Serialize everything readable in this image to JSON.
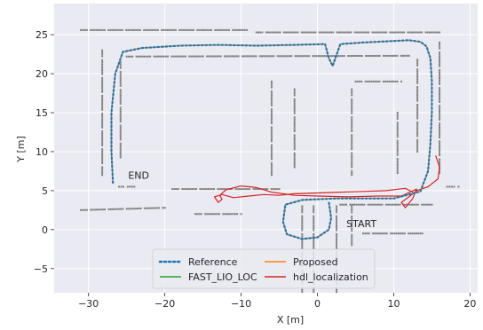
{
  "chart_data": {
    "type": "line",
    "title": "",
    "xlabel": "X [m]",
    "ylabel": "Y [m]",
    "xlim": [
      -34.5,
      21
    ],
    "ylim": [
      -8.1,
      29
    ],
    "xticks": [
      -30,
      -20,
      -10,
      0,
      10,
      20
    ],
    "yticks": [
      -5,
      0,
      5,
      10,
      15,
      20,
      25
    ],
    "grid": true,
    "background": "#eaeaf2",
    "legend_position": "bottom-center",
    "annotations": [
      {
        "text": "END",
        "x": -24.8,
        "y": 6.5
      },
      {
        "text": "START",
        "x": 3.8,
        "y": 0.3
      }
    ],
    "series": [
      {
        "name": "Reference",
        "style": "dotted",
        "color": "#1f77b4",
        "x": [
          -26.8,
          -27,
          -27,
          -26.5,
          -25.5,
          -23,
          -18,
          -13,
          -8,
          -3,
          1,
          1.5,
          2,
          3,
          6,
          10,
          12,
          13.5,
          14.3,
          14.8,
          15,
          15,
          14.8,
          14.5,
          13.5,
          10,
          6,
          2.5,
          -2,
          -4.2,
          -4.5,
          -4,
          -2,
          0,
          1.5,
          1.8,
          1.5
        ],
        "y": [
          6.0,
          10,
          15,
          20,
          22.8,
          23.3,
          23.6,
          23.7,
          23.6,
          23.7,
          23.8,
          22,
          21,
          23.8,
          24,
          24.2,
          24.3,
          24.1,
          23.5,
          22,
          19,
          15,
          11,
          7.5,
          4.9,
          4.0,
          4.0,
          4.0,
          3.8,
          3.2,
          1,
          -0.6,
          -1.2,
          -1.0,
          0,
          1.5,
          3.5
        ]
      },
      {
        "name": "Proposed",
        "style": "solid",
        "color": "#ff7f0e",
        "x": [
          -26.8,
          -27,
          -27,
          -26.5,
          -25.5,
          -23,
          -18,
          -13,
          -8,
          -3,
          1,
          1.5,
          2,
          3,
          6,
          10,
          12,
          13.5,
          14.3,
          14.8,
          15,
          15,
          14.8,
          14.5,
          13.5,
          10,
          6,
          2.5,
          -2,
          -4.2,
          -4.5,
          -4,
          -2,
          0,
          1.5,
          1.8,
          1.5
        ],
        "y": [
          6.0,
          10,
          15,
          20,
          22.8,
          23.3,
          23.6,
          23.7,
          23.6,
          23.7,
          23.8,
          22,
          21,
          23.8,
          24,
          24.2,
          24.3,
          24.1,
          23.5,
          22,
          19,
          15,
          11,
          7.5,
          4.9,
          4.0,
          4.0,
          4.0,
          3.8,
          3.2,
          1,
          -0.6,
          -1.2,
          -1.0,
          0,
          1.5,
          3.5
        ]
      },
      {
        "name": "FAST_LIO_LOC",
        "style": "solid",
        "color": "#2ca02c",
        "x": [
          -26.8,
          -27,
          -27,
          -26.5,
          -25.5,
          -23,
          -18,
          -13,
          -8,
          -3,
          1,
          1.5,
          2,
          3,
          6,
          10,
          12,
          13.5,
          14.3,
          14.8,
          15,
          15,
          14.8,
          14.5,
          13.5,
          10,
          6,
          2.5,
          -2,
          -4.2,
          -4.5,
          -4,
          -2,
          0,
          1.5,
          1.8,
          1.5
        ],
        "y": [
          6.0,
          10,
          15,
          20,
          22.8,
          23.3,
          23.6,
          23.7,
          23.6,
          23.7,
          23.8,
          22,
          21,
          23.8,
          24,
          24.2,
          24.3,
          24.1,
          23.5,
          22,
          19,
          15,
          11,
          7.5,
          4.9,
          4.0,
          4.0,
          4.0,
          3.8,
          3.2,
          1,
          -0.6,
          -1.2,
          -1.0,
          0,
          1.5,
          3.5
        ]
      },
      {
        "name": "hdl_localization",
        "style": "solid",
        "color": "#d62728",
        "x": [
          15.5,
          16,
          15.8,
          14.5,
          13,
          12,
          11,
          11.5,
          12.5,
          13,
          11,
          8,
          4,
          0,
          -3,
          -6,
          -8,
          -10,
          -12,
          -12.8,
          -12.5,
          -13,
          -13.5,
          -12.5,
          -11,
          -9,
          -7,
          -5,
          -3,
          0,
          3,
          6,
          9,
          11.5,
          12.5
        ],
        "y": [
          9.5,
          8.0,
          6.5,
          5.5,
          5.0,
          4.2,
          3.5,
          2.8,
          4.0,
          5.2,
          4.3,
          4.3,
          4.2,
          4.3,
          4.4,
          4.8,
          5.4,
          5.6,
          5.1,
          4.4,
          3.9,
          3.5,
          4.2,
          4.5,
          4.1,
          4.3,
          4.5,
          4.4,
          4.6,
          4.7,
          4.8,
          4.9,
          5.0,
          5.3,
          4.8
        ]
      }
    ]
  }
}
